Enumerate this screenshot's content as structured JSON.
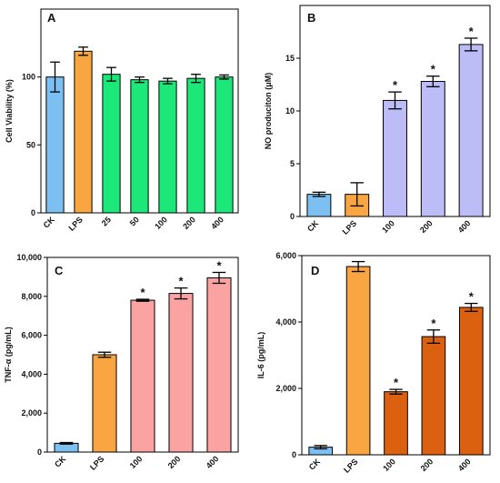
{
  "chart_data": [
    {
      "type": "bar",
      "panel": "A",
      "categories": [
        "CK",
        "LPS",
        "25",
        "50",
        "100",
        "200",
        "400"
      ],
      "values": [
        100,
        119,
        102,
        98,
        97,
        99,
        100
      ],
      "errors": [
        11,
        3,
        5,
        2,
        2,
        3,
        1.5
      ],
      "colors": [
        "#7cc0f2",
        "#f9a541",
        "#1ce87a",
        "#1ce87a",
        "#1ce87a",
        "#1ce87a",
        "#1ce87a"
      ],
      "significant": [
        false,
        false,
        false,
        false,
        false,
        false,
        false
      ],
      "xlabel": "",
      "ylabel": "Cell Viability (%)",
      "ylim": [
        0,
        150
      ],
      "yticks": [
        0,
        50,
        100
      ],
      "ytick_labels": [
        "0",
        "50",
        "100"
      ],
      "grid": false,
      "significance_marker": "*"
    },
    {
      "type": "bar",
      "panel": "B",
      "categories": [
        "CK",
        "LPS",
        "100",
        "200",
        "400"
      ],
      "values": [
        2.1,
        2.1,
        11.0,
        12.8,
        16.3
      ],
      "errors": [
        0.2,
        1.1,
        0.8,
        0.5,
        0.6
      ],
      "colors": [
        "#7cc0f2",
        "#f9a541",
        "#bcbcf7",
        "#bcbcf7",
        "#bcbcf7"
      ],
      "significant": [
        false,
        false,
        true,
        true,
        true
      ],
      "xlabel": "",
      "ylabel": "NO produciton (μM)",
      "ylim": [
        0,
        20
      ],
      "yticks": [
        0,
        5,
        10,
        15
      ],
      "ytick_labels": [
        "0",
        "5",
        "10",
        "15"
      ],
      "grid": false,
      "significance_marker": "*"
    },
    {
      "type": "bar",
      "panel": "C",
      "categories": [
        "CK",
        "LPS",
        "100",
        "200",
        "400"
      ],
      "values": [
        450,
        5000,
        7800,
        8150,
        8950
      ],
      "errors": [
        40,
        130,
        50,
        280,
        280
      ],
      "colors": [
        "#7cc0f2",
        "#f9a541",
        "#fba3a3",
        "#fba3a3",
        "#fba3a3"
      ],
      "significant": [
        false,
        false,
        true,
        true,
        true
      ],
      "xlabel": "",
      "ylabel": "TNF-α (pg/mL)",
      "ylim": [
        0,
        10000
      ],
      "yticks": [
        0,
        2000,
        4000,
        6000,
        8000,
        10000
      ],
      "ytick_labels": [
        "0",
        "2,000",
        "4,000",
        "6,000",
        "8,000",
        "10,000"
      ],
      "grid": false,
      "significance_marker": "*"
    },
    {
      "type": "bar",
      "panel": "D",
      "categories": [
        "CK",
        "LPS",
        "100",
        "200",
        "400"
      ],
      "values": [
        230,
        5670,
        1900,
        3560,
        4440
      ],
      "errors": [
        50,
        150,
        70,
        200,
        120
      ],
      "colors": [
        "#7cc0f2",
        "#f9a541",
        "#db6010",
        "#db6010",
        "#db6010"
      ],
      "significant": [
        false,
        false,
        true,
        true,
        true
      ],
      "xlabel": "",
      "ylabel": "IL-6 (pg/mL)",
      "ylim": [
        0,
        6000
      ],
      "yticks": [
        0,
        2000,
        4000,
        6000
      ],
      "ytick_labels": [
        "0",
        "2,000",
        "4,000",
        "6,000"
      ],
      "grid": false,
      "significance_marker": "*"
    }
  ]
}
